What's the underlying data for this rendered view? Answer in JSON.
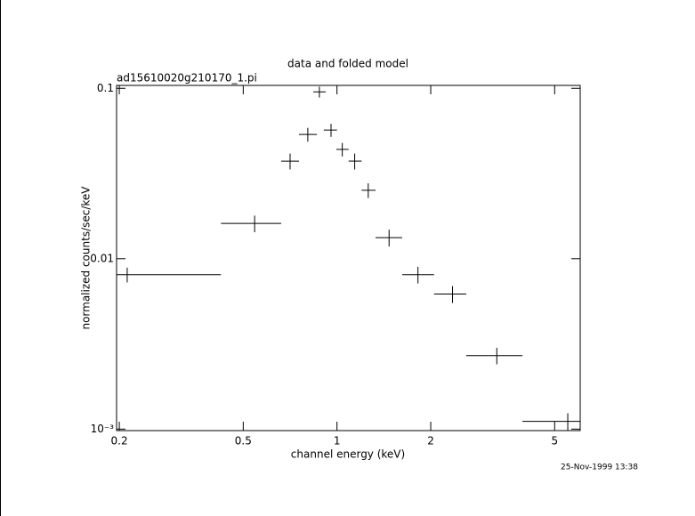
{
  "chart_data": {
    "type": "errorbar",
    "title": "data and folded model",
    "subtitle": "ad15610020g210170_1.pi",
    "x_label": "channel energy (keV)",
    "y_label": "normalized counts/sec/keV",
    "timestamp": "25-Nov-1999 13:38",
    "x_scale": "log",
    "y_scale": "log",
    "xlim": [
      0.196,
      6.04
    ],
    "ylim": [
      0.00098,
      0.104
    ],
    "xticks": [
      0.2,
      0.5,
      1,
      2,
      5
    ],
    "yticks": [
      {
        "value": 0.001,
        "label": "10⁻³"
      },
      0.01,
      0.1
    ],
    "color": "#000000",
    "x": [
      0.212,
      0.544,
      0.707,
      0.806,
      0.878,
      0.957,
      1.04,
      1.14,
      1.26,
      1.47,
      1.82,
      2.35,
      3.26,
      5.51
    ],
    "x_min": [
      0.196,
      0.424,
      0.662,
      0.755,
      0.839,
      0.907,
      0.995,
      1.09,
      1.2,
      1.33,
      1.62,
      2.05,
      2.6,
      3.94
    ],
    "x_max": [
      0.424,
      0.662,
      0.755,
      0.862,
      0.92,
      1.0,
      1.09,
      1.2,
      1.33,
      1.62,
      2.05,
      2.6,
      3.94,
      6.04
    ],
    "values": [
      0.00806,
      0.0161,
      0.0374,
      0.0536,
      0.0953,
      0.0569,
      0.0438,
      0.0374,
      0.0252,
      0.0133,
      0.00806,
      0.0062,
      0.0027,
      0.00111
    ],
    "yerr": [
      0.0008,
      0.0018,
      0.004,
      0.005,
      0.007,
      0.005,
      0.004,
      0.004,
      0.0025,
      0.0015,
      0.0009,
      0.0007,
      0.0003,
      0.00013
    ]
  }
}
